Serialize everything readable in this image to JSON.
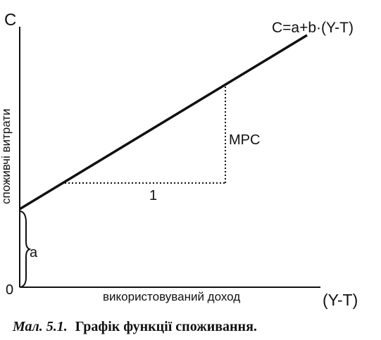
{
  "axes": {
    "y_label": "C",
    "x_label": "(Y-T)",
    "origin_label": "0",
    "y_title": "споживчі витрати",
    "x_title": "використовуваний доход"
  },
  "function": {
    "equation": "C=a+b·(Y-T)",
    "intercept_label": "a",
    "slope_label": "MPC",
    "run_label": "1"
  },
  "caption": {
    "prefix": "Мал. 5.1.",
    "text": "Графік функції споживання."
  },
  "colors": {
    "ink": "#111111",
    "background": "#ffffff"
  }
}
